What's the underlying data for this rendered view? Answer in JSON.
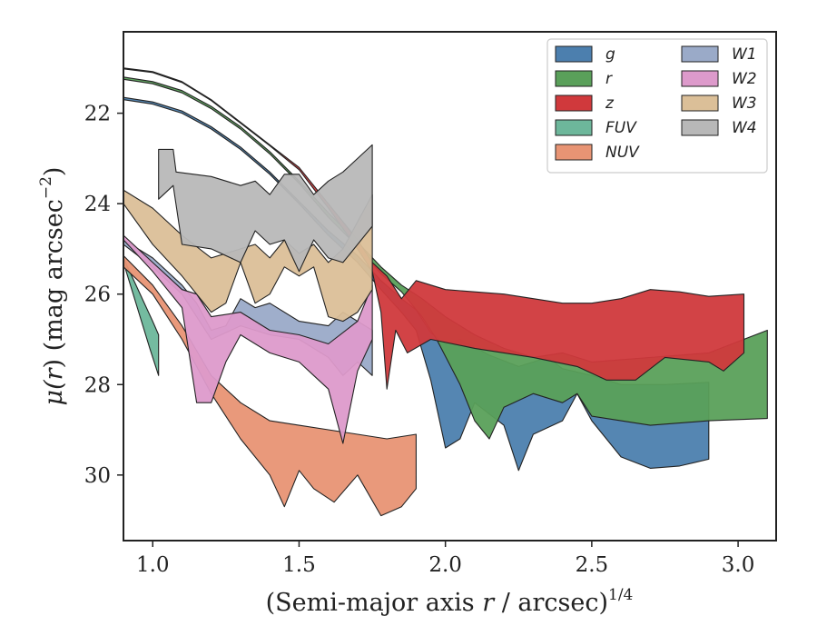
{
  "chart_data": {
    "type": "area",
    "xlabel": {
      "main": "(Semi-major axis ",
      "var": "r",
      "rest": " / arcsec)",
      "sup": "1/4"
    },
    "ylabel": {
      "pre": "μ(",
      "var": "r",
      "post": ") (mag arcsec",
      "sup": "−2",
      "end": ")"
    },
    "xlim": [
      0.9,
      3.13
    ],
    "ylim": [
      31.45,
      20.2
    ],
    "y_inverted": true,
    "xticks": [
      1.0,
      1.5,
      2.0,
      2.5,
      3.0
    ],
    "xtick_labels": [
      "1.0",
      "1.5",
      "2.0",
      "2.5",
      "3.0"
    ],
    "yticks": [
      22,
      24,
      26,
      28,
      30
    ],
    "ytick_labels": [
      "22",
      "24",
      "26",
      "28",
      "30"
    ],
    "grid": false,
    "legend_position": "top-right",
    "legend_columns": 2,
    "series": [
      {
        "name": "g",
        "color": "#4c7fae",
        "upper": [
          [
            0.9,
            21.65
          ],
          [
            1.0,
            21.75
          ],
          [
            1.1,
            21.95
          ],
          [
            1.2,
            22.3
          ],
          [
            1.3,
            22.75
          ],
          [
            1.4,
            23.3
          ],
          [
            1.5,
            23.95
          ],
          [
            1.6,
            24.6
          ],
          [
            1.7,
            25.15
          ],
          [
            1.78,
            25.7
          ],
          [
            1.85,
            26.1
          ],
          [
            1.9,
            26.35
          ],
          [
            1.95,
            26.85
          ],
          [
            2.0,
            27.1
          ],
          [
            2.05,
            27.0
          ],
          [
            2.15,
            27.35
          ],
          [
            2.25,
            27.6
          ],
          [
            2.35,
            27.4
          ],
          [
            2.4,
            27.65
          ],
          [
            2.5,
            27.8
          ],
          [
            2.6,
            28.0
          ],
          [
            2.75,
            28.0
          ],
          [
            2.9,
            27.95
          ]
        ],
        "lower": [
          [
            0.9,
            21.7
          ],
          [
            1.0,
            21.8
          ],
          [
            1.1,
            22.0
          ],
          [
            1.2,
            22.35
          ],
          [
            1.3,
            22.8
          ],
          [
            1.4,
            23.35
          ],
          [
            1.5,
            24.0
          ],
          [
            1.6,
            24.7
          ],
          [
            1.7,
            25.3
          ],
          [
            1.78,
            25.9
          ],
          [
            1.85,
            26.4
          ],
          [
            1.9,
            26.8
          ],
          [
            1.95,
            27.9
          ],
          [
            2.0,
            29.4
          ],
          [
            2.05,
            29.2
          ],
          [
            2.1,
            28.4
          ],
          [
            2.2,
            28.9
          ],
          [
            2.25,
            29.9
          ],
          [
            2.3,
            29.1
          ],
          [
            2.4,
            28.8
          ],
          [
            2.45,
            28.2
          ],
          [
            2.5,
            28.8
          ],
          [
            2.6,
            29.6
          ],
          [
            2.7,
            29.85
          ],
          [
            2.8,
            29.8
          ],
          [
            2.9,
            29.65
          ]
        ]
      },
      {
        "name": "r",
        "color": "#5aa05a",
        "upper": [
          [
            0.9,
            21.2
          ],
          [
            1.0,
            21.3
          ],
          [
            1.1,
            21.5
          ],
          [
            1.2,
            21.85
          ],
          [
            1.3,
            22.3
          ],
          [
            1.4,
            22.85
          ],
          [
            1.5,
            23.5
          ],
          [
            1.6,
            24.2
          ],
          [
            1.7,
            24.85
          ],
          [
            1.78,
            25.4
          ],
          [
            1.85,
            25.8
          ],
          [
            1.92,
            26.1
          ],
          [
            2.0,
            26.5
          ],
          [
            2.1,
            26.9
          ],
          [
            2.2,
            27.2
          ],
          [
            2.3,
            27.4
          ],
          [
            2.4,
            27.3
          ],
          [
            2.5,
            27.5
          ],
          [
            2.7,
            27.4
          ],
          [
            2.9,
            27.3
          ],
          [
            3.1,
            26.8
          ]
        ],
        "lower": [
          [
            0.9,
            21.25
          ],
          [
            1.0,
            21.35
          ],
          [
            1.1,
            21.55
          ],
          [
            1.2,
            21.9
          ],
          [
            1.3,
            22.35
          ],
          [
            1.4,
            22.9
          ],
          [
            1.5,
            23.55
          ],
          [
            1.6,
            24.3
          ],
          [
            1.7,
            24.95
          ],
          [
            1.78,
            25.55
          ],
          [
            1.85,
            25.95
          ],
          [
            1.92,
            26.5
          ],
          [
            1.97,
            27.0
          ],
          [
            2.05,
            28.0
          ],
          [
            2.1,
            28.8
          ],
          [
            2.15,
            29.2
          ],
          [
            2.2,
            28.5
          ],
          [
            2.3,
            28.2
          ],
          [
            2.4,
            28.4
          ],
          [
            2.45,
            28.2
          ],
          [
            2.5,
            28.7
          ],
          [
            2.7,
            28.9
          ],
          [
            2.9,
            28.8
          ],
          [
            3.1,
            28.75
          ]
        ]
      },
      {
        "name": "z",
        "color": "#d0393c",
        "upper": [
          [
            0.9,
            21.0
          ],
          [
            1.0,
            21.08
          ],
          [
            1.1,
            21.3
          ],
          [
            1.2,
            21.7
          ],
          [
            1.3,
            22.2
          ],
          [
            1.4,
            22.7
          ],
          [
            1.5,
            23.2
          ],
          [
            1.6,
            24.0
          ],
          [
            1.7,
            24.8
          ],
          [
            1.75,
            25.3
          ],
          [
            1.8,
            25.6
          ],
          [
            1.85,
            26.1
          ],
          [
            1.9,
            25.7
          ],
          [
            2.0,
            25.9
          ],
          [
            2.2,
            26.0
          ],
          [
            2.4,
            26.2
          ],
          [
            2.5,
            26.2
          ],
          [
            2.6,
            26.1
          ],
          [
            2.7,
            25.9
          ],
          [
            2.8,
            25.95
          ],
          [
            2.9,
            26.05
          ],
          [
            3.02,
            26.0
          ]
        ],
        "lower": [
          [
            0.9,
            21.02
          ],
          [
            1.0,
            21.1
          ],
          [
            1.1,
            21.32
          ],
          [
            1.2,
            21.72
          ],
          [
            1.3,
            22.22
          ],
          [
            1.4,
            22.72
          ],
          [
            1.5,
            23.25
          ],
          [
            1.6,
            24.1
          ],
          [
            1.7,
            25.0
          ],
          [
            1.75,
            25.5
          ],
          [
            1.78,
            26.4
          ],
          [
            1.8,
            28.1
          ],
          [
            1.83,
            26.8
          ],
          [
            1.87,
            27.3
          ],
          [
            1.95,
            27.0
          ],
          [
            2.1,
            27.2
          ],
          [
            2.3,
            27.4
          ],
          [
            2.45,
            27.6
          ],
          [
            2.55,
            27.9
          ],
          [
            2.65,
            27.9
          ],
          [
            2.75,
            27.4
          ],
          [
            2.9,
            27.5
          ],
          [
            2.95,
            27.7
          ],
          [
            3.02,
            27.3
          ]
        ]
      },
      {
        "name": "FUV",
        "color": "#6db79b",
        "upper": [
          [
            0.9,
            25.2
          ],
          [
            1.0,
            26.6
          ],
          [
            1.02,
            26.9
          ]
        ],
        "lower": [
          [
            0.9,
            25.3
          ],
          [
            0.99,
            27.2
          ],
          [
            1.02,
            27.8
          ]
        ]
      },
      {
        "name": "NUV",
        "color": "#e89474",
        "upper": [
          [
            0.9,
            25.15
          ],
          [
            1.0,
            25.8
          ],
          [
            1.1,
            26.7
          ],
          [
            1.2,
            27.8
          ],
          [
            1.3,
            28.4
          ],
          [
            1.4,
            28.8
          ],
          [
            1.5,
            28.9
          ],
          [
            1.6,
            29.0
          ],
          [
            1.7,
            29.1
          ],
          [
            1.8,
            29.2
          ],
          [
            1.9,
            29.1
          ]
        ],
        "lower": [
          [
            0.9,
            25.4
          ],
          [
            1.0,
            26.0
          ],
          [
            1.1,
            27.0
          ],
          [
            1.2,
            28.2
          ],
          [
            1.3,
            29.2
          ],
          [
            1.4,
            30.0
          ],
          [
            1.45,
            30.7
          ],
          [
            1.5,
            29.9
          ],
          [
            1.55,
            30.3
          ],
          [
            1.62,
            30.6
          ],
          [
            1.7,
            30.0
          ],
          [
            1.78,
            30.9
          ],
          [
            1.85,
            30.7
          ],
          [
            1.9,
            30.3
          ]
        ]
      },
      {
        "name": "W1",
        "color": "#9aaac8",
        "upper": [
          [
            0.9,
            24.8
          ],
          [
            1.0,
            25.2
          ],
          [
            1.1,
            25.8
          ],
          [
            1.15,
            26.2
          ],
          [
            1.2,
            26.8
          ],
          [
            1.25,
            26.7
          ],
          [
            1.3,
            26.1
          ],
          [
            1.35,
            26.3
          ],
          [
            1.4,
            26.2
          ],
          [
            1.5,
            26.6
          ],
          [
            1.6,
            26.7
          ],
          [
            1.65,
            26.4
          ],
          [
            1.7,
            26.6
          ],
          [
            1.75,
            26.8
          ]
        ],
        "lower": [
          [
            0.9,
            24.9
          ],
          [
            1.0,
            25.4
          ],
          [
            1.1,
            26.0
          ],
          [
            1.2,
            27.0
          ],
          [
            1.3,
            26.7
          ],
          [
            1.4,
            26.9
          ],
          [
            1.5,
            27.0
          ],
          [
            1.6,
            27.4
          ],
          [
            1.65,
            27.8
          ],
          [
            1.7,
            27.5
          ],
          [
            1.75,
            27.8
          ]
        ]
      },
      {
        "name": "W2",
        "color": "#dd9acb",
        "upper": [
          [
            0.9,
            24.7
          ],
          [
            1.0,
            25.3
          ],
          [
            1.1,
            25.9
          ],
          [
            1.15,
            26.0
          ],
          [
            1.2,
            26.5
          ],
          [
            1.3,
            26.4
          ],
          [
            1.4,
            26.8
          ],
          [
            1.5,
            26.9
          ],
          [
            1.6,
            27.1
          ],
          [
            1.7,
            26.6
          ],
          [
            1.75,
            25.8
          ]
        ],
        "lower": [
          [
            0.9,
            24.8
          ],
          [
            1.0,
            25.5
          ],
          [
            1.1,
            26.3
          ],
          [
            1.15,
            28.4
          ],
          [
            1.2,
            28.4
          ],
          [
            1.25,
            27.5
          ],
          [
            1.3,
            26.9
          ],
          [
            1.4,
            27.3
          ],
          [
            1.5,
            27.5
          ],
          [
            1.55,
            27.8
          ],
          [
            1.6,
            28.1
          ],
          [
            1.65,
            29.3
          ],
          [
            1.7,
            27.7
          ],
          [
            1.75,
            27.0
          ]
        ]
      },
      {
        "name": "W3",
        "color": "#dbbf98",
        "upper": [
          [
            0.9,
            23.7
          ],
          [
            1.0,
            24.1
          ],
          [
            1.1,
            24.7
          ],
          [
            1.2,
            25.2
          ],
          [
            1.3,
            25.0
          ],
          [
            1.35,
            24.9
          ],
          [
            1.4,
            25.2
          ],
          [
            1.45,
            24.8
          ],
          [
            1.5,
            25.1
          ],
          [
            1.55,
            24.9
          ],
          [
            1.6,
            25.3
          ],
          [
            1.65,
            25.0
          ],
          [
            1.75,
            23.8
          ]
        ],
        "lower": [
          [
            0.9,
            24.0
          ],
          [
            1.0,
            24.9
          ],
          [
            1.1,
            25.6
          ],
          [
            1.2,
            26.4
          ],
          [
            1.25,
            26.2
          ],
          [
            1.3,
            25.3
          ],
          [
            1.35,
            26.2
          ],
          [
            1.4,
            26.0
          ],
          [
            1.45,
            25.4
          ],
          [
            1.5,
            25.6
          ],
          [
            1.55,
            25.4
          ],
          [
            1.6,
            26.5
          ],
          [
            1.65,
            26.6
          ],
          [
            1.7,
            26.4
          ],
          [
            1.75,
            25.9
          ]
        ]
      },
      {
        "name": "W4",
        "color": "#b8b8b8",
        "upper": [
          [
            1.02,
            22.8
          ],
          [
            1.07,
            22.8
          ],
          [
            1.08,
            23.3
          ],
          [
            1.2,
            23.4
          ],
          [
            1.3,
            23.6
          ],
          [
            1.35,
            23.5
          ],
          [
            1.4,
            23.8
          ],
          [
            1.45,
            23.35
          ],
          [
            1.5,
            23.35
          ],
          [
            1.55,
            23.8
          ],
          [
            1.6,
            23.5
          ],
          [
            1.65,
            23.3
          ],
          [
            1.75,
            22.7
          ]
        ],
        "lower": [
          [
            1.02,
            23.9
          ],
          [
            1.07,
            23.6
          ],
          [
            1.1,
            24.9
          ],
          [
            1.2,
            25.0
          ],
          [
            1.3,
            25.3
          ],
          [
            1.35,
            24.6
          ],
          [
            1.4,
            24.9
          ],
          [
            1.45,
            24.8
          ],
          [
            1.5,
            25.5
          ],
          [
            1.55,
            24.8
          ],
          [
            1.6,
            25.2
          ],
          [
            1.65,
            25.3
          ],
          [
            1.75,
            24.5
          ]
        ]
      }
    ],
    "legend_order": [
      "g",
      "r",
      "z",
      "FUV",
      "NUV",
      "W1",
      "W2",
      "W3",
      "W4"
    ]
  }
}
